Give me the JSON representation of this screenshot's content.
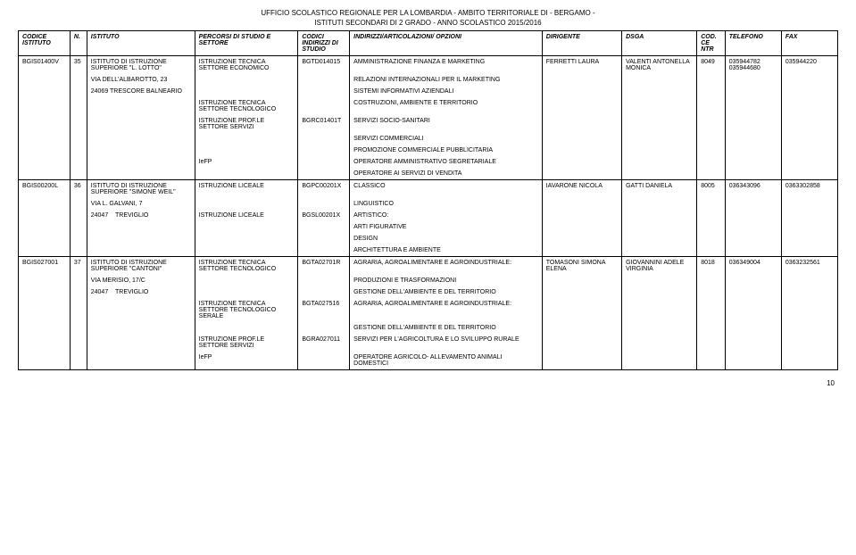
{
  "header": {
    "line1": "UFFICIO SCOLASTICO REGIONALE PER LA LOMBARDIA - AMBITO TERRITORIALE DI - BERGAMO -",
    "line2": "ISTITUTI SECONDARI DI 2 GRADO - ANNO SCOLASTICO 2015/2016"
  },
  "columns": {
    "c1": "CODICE ISTITUTO",
    "c2": "N.",
    "c3": "ISTITUTO",
    "c4": "PERCORSI DI STUDIO E SETTORE",
    "c5": "CODICI INDIRIZZI DI STUDIO",
    "c6": "INDIRIZZI/ARTICOLAZIONI/ OPZIONI",
    "c7": "DIRIGENTE",
    "c8": "DSGA",
    "c9": "COD.CE NTR",
    "c10": "TELEFONO",
    "c11": "FAX"
  },
  "r35": {
    "codice": "BGIS01400V",
    "n": "35",
    "ist_line1": "ISTITUTO DI ISTRUZIONE SUPERIORE \"L. LOTTO\"",
    "addr1": "VIA DELL'ALBAROTTO, 23",
    "addr2": "24069 TRESCORE BALNEARIO",
    "perc1": "ISTRUZIONE TECNICA SETTORE ECONOMICO",
    "perc2": "ISTRUZIONE TECNICA SETTORE TECNOLOGICO",
    "perc3": "ISTRUZIONE PROF.LE SETTORE SERVIZI",
    "perc4": "IeFP",
    "cod_a": "BGTD014015",
    "cod_b": "BGRC01401T",
    "ind1": "AMMINISTRAZIONE FINANZA E MARKETING",
    "ind2": "RELAZIONI INTERNAZIONALI PER IL MARKETING",
    "ind3": "SISTEMI INFORMATIVI AZIENDALI",
    "ind4": "COSTRUZIONI, AMBIENTE E TERRITORIO",
    "ind5": "SERVIZI SOCIO-SANITARI",
    "ind6": "SERVIZI COMMERCIALI",
    "ind7": "PROMOZIONE COMMERCIALE PUBBLICITARIA",
    "ind8": "OPERATORE AMMINISTRATIVO SEGRETARIALE",
    "ind9": "OPERATORE AI SERVIZI DI VENDITA",
    "dirigente": "FERRETTI LAURA",
    "dsga": "VALENTI ANTONELLA MONICA",
    "codcentr": "8049",
    "tel": "035944782 035944680",
    "fax": "035944220"
  },
  "r36": {
    "codice": "BGIS00200L",
    "n": "36",
    "ist_line1": "ISTITUTO DI ISTRUZIONE SUPERIORE \"SIMONE WEIL\"",
    "addr1": "VIA L. GALVANI, 7",
    "addr2a": "24047",
    "addr2b": "TREVIGLIO",
    "perc1": "ISTRUZIONE LICEALE",
    "perc2": "ISTRUZIONE LICEALE",
    "cod_a": "BGPC00201X",
    "cod_b": "BGSL00201X",
    "ind1": "CLASSICO",
    "ind2": "LINGUISTICO",
    "ind3": "ARTISTICO:",
    "ind4": "ARTI FIGURATIVE",
    "ind5": "DESIGN",
    "ind6": "ARCHITETTURA E AMBIENTE",
    "dirigente": "IAVARONE NICOLA",
    "dsga": "GATTI DANIELA",
    "codcentr": "8005",
    "tel": "036343096",
    "fax": "0363302858"
  },
  "r37": {
    "codice": "BGIS027001",
    "n": "37",
    "ist_line1": "ISTITUTO DI ISTRUZIONE SUPERIORE \"CANTONI\"",
    "addr1": "VIA MERISIO, 17/C",
    "addr2a": "24047",
    "addr2b": "TREVIGLIO",
    "perc1": "ISTRUZIONE TECNICA SETTORE TECNOLOGICO",
    "perc2": "ISTRUZIONE TECNICA SETTORE TECNOLOGICO SERALE",
    "perc3": "ISTRUZIONE PROF.LE SETTORE SERVIZI",
    "perc4": "IeFP",
    "cod_a": "BGTA02701R",
    "cod_b": "BGTA027516",
    "cod_c": "BGRA027011",
    "ind1": "AGRARIA, AGROALIMENTARE E AGROINDUSTRIALE:",
    "ind2": "PRODUZIONI E  TRASFORMAZIONI",
    "ind3": "GESTIONE DELL'AMBIENTE E DEL TERRITORIO",
    "ind4": "AGRARIA, AGROALIMENTARE E AGROINDUSTRIALE:",
    "ind5": "GESTIONE DELL'AMBIENTE E DEL TERRITORIO",
    "ind6": "SERVIZI PER L'AGRICOLTURA E LO SVILUPPO RURALE",
    "ind7": "OPERATORE AGRICOLO- ALLEVAMENTO ANIMALI DOMESTICI",
    "dirigente": "TOMASONI SIMONA ELENA",
    "dsga": "GIOVANNINI ADELE VIRGINIA",
    "codcentr": "8018",
    "tel": "036349004",
    "fax": "0363232561"
  },
  "page_number": "10",
  "colwidths": {
    "c1": "55",
    "c2": "18",
    "c3": "115",
    "c4": "110",
    "c5": "55",
    "c6": "205",
    "c7": "85",
    "c8": "80",
    "c9": "30",
    "c10": "60",
    "c11": "60"
  }
}
